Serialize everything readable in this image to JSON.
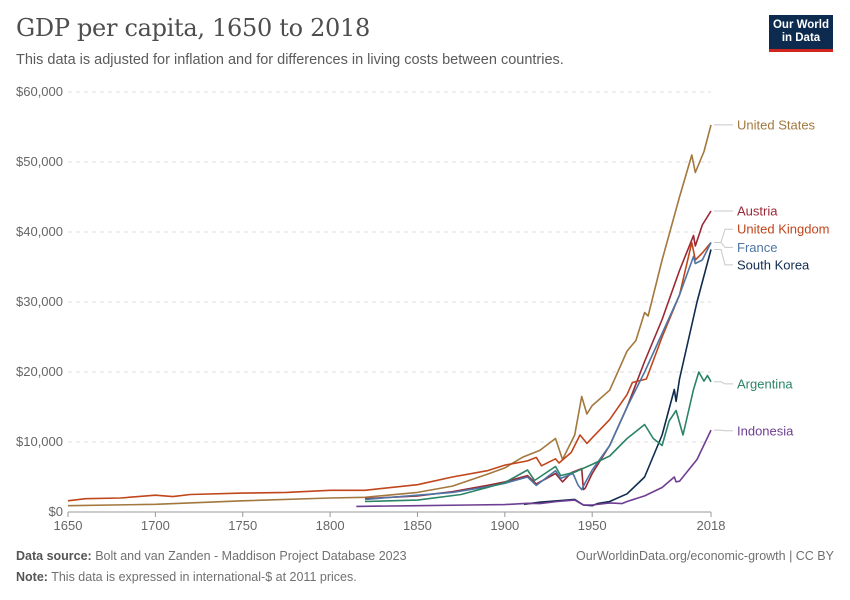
{
  "header": {
    "title": "GDP per capita, 1650 to 2018",
    "subtitle": "This data is adjusted for inflation and for differences in living costs between countries."
  },
  "logo": {
    "line1": "Our World",
    "line2": "in Data",
    "bg_color": "#0d2a4f",
    "accent_color": "#ce261e"
  },
  "footer": {
    "source_label": "Data source:",
    "source_text": " Bolt and van Zanden - Maddison Project Database 2023",
    "note_label": "Note:",
    "note_text": " This data is expressed in international-$ at 2011 prices.",
    "right_text": "OurWorldinData.org/economic-growth | CC BY"
  },
  "chart_data": {
    "type": "line",
    "title": "GDP per capita, 1650 to 2018",
    "xlim": [
      1650,
      2018
    ],
    "ylim": [
      0,
      60000
    ],
    "y_ticks": [
      0,
      10000,
      20000,
      30000,
      40000,
      50000,
      60000
    ],
    "y_tick_labels": [
      "$0",
      "$10,000",
      "$20,000",
      "$30,000",
      "$40,000",
      "$50,000",
      "$60,000"
    ],
    "x_ticks": [
      1650,
      1700,
      1750,
      1800,
      1850,
      1900,
      1950,
      2018
    ],
    "x_tick_labels": [
      "1650",
      "1700",
      "1750",
      "1800",
      "1850",
      "1900",
      "1950",
      "2018"
    ],
    "grid": "horizontal-dashed",
    "legend": "right-end-labels",
    "series": [
      {
        "name": "United States",
        "color": "#a2783e",
        "points": [
          [
            1650,
            900
          ],
          [
            1700,
            1100
          ],
          [
            1750,
            1600
          ],
          [
            1800,
            2000
          ],
          [
            1820,
            2100
          ],
          [
            1850,
            2800
          ],
          [
            1870,
            3700
          ],
          [
            1890,
            5400
          ],
          [
            1900,
            6300
          ],
          [
            1910,
            7800
          ],
          [
            1913,
            8100
          ],
          [
            1920,
            8800
          ],
          [
            1929,
            10500
          ],
          [
            1933,
            7500
          ],
          [
            1940,
            11000
          ],
          [
            1944,
            16500
          ],
          [
            1947,
            14000
          ],
          [
            1950,
            15200
          ],
          [
            1960,
            17400
          ],
          [
            1970,
            23000
          ],
          [
            1975,
            24500
          ],
          [
            1980,
            28500
          ],
          [
            1982,
            28000
          ],
          [
            1990,
            36000
          ],
          [
            2000,
            45000
          ],
          [
            2007,
            51000
          ],
          [
            2009,
            48500
          ],
          [
            2014,
            51500
          ],
          [
            2018,
            55300
          ]
        ]
      },
      {
        "name": "Austria",
        "color": "#9a2734",
        "points": [
          [
            1820,
            1900
          ],
          [
            1850,
            2300
          ],
          [
            1870,
            2900
          ],
          [
            1890,
            3800
          ],
          [
            1900,
            4300
          ],
          [
            1913,
            5200
          ],
          [
            1918,
            4000
          ],
          [
            1929,
            5500
          ],
          [
            1933,
            4300
          ],
          [
            1938,
            5600
          ],
          [
            1944,
            6200
          ],
          [
            1945,
            3200
          ],
          [
            1946,
            3400
          ],
          [
            1950,
            5500
          ],
          [
            1960,
            9500
          ],
          [
            1970,
            15000
          ],
          [
            1980,
            21500
          ],
          [
            1990,
            27500
          ],
          [
            2000,
            34500
          ],
          [
            2008,
            39500
          ],
          [
            2009,
            38000
          ],
          [
            2013,
            41000
          ],
          [
            2018,
            43000
          ]
        ]
      },
      {
        "name": "United Kingdom",
        "color": "#c0461c",
        "points": [
          [
            1650,
            1600
          ],
          [
            1660,
            1900
          ],
          [
            1680,
            2000
          ],
          [
            1700,
            2400
          ],
          [
            1710,
            2200
          ],
          [
            1720,
            2500
          ],
          [
            1750,
            2700
          ],
          [
            1775,
            2800
          ],
          [
            1800,
            3100
          ],
          [
            1820,
            3100
          ],
          [
            1850,
            3900
          ],
          [
            1870,
            5000
          ],
          [
            1890,
            5900
          ],
          [
            1900,
            6700
          ],
          [
            1913,
            7300
          ],
          [
            1918,
            7800
          ],
          [
            1921,
            6600
          ],
          [
            1929,
            7600
          ],
          [
            1931,
            7000
          ],
          [
            1938,
            8500
          ],
          [
            1943,
            11000
          ],
          [
            1947,
            9800
          ],
          [
            1950,
            10600
          ],
          [
            1960,
            13200
          ],
          [
            1970,
            16800
          ],
          [
            1973,
            18500
          ],
          [
            1981,
            19000
          ],
          [
            1990,
            25000
          ],
          [
            2000,
            31000
          ],
          [
            2007,
            38500
          ],
          [
            2009,
            36000
          ],
          [
            2013,
            37000
          ],
          [
            2018,
            38500
          ]
        ]
      },
      {
        "name": "France",
        "color": "#4e75a3",
        "points": [
          [
            1820,
            1800
          ],
          [
            1850,
            2400
          ],
          [
            1870,
            2800
          ],
          [
            1890,
            3600
          ],
          [
            1900,
            4100
          ],
          [
            1913,
            5000
          ],
          [
            1918,
            3800
          ],
          [
            1929,
            5900
          ],
          [
            1932,
            4800
          ],
          [
            1939,
            5500
          ],
          [
            1942,
            3800
          ],
          [
            1944,
            3200
          ],
          [
            1946,
            4200
          ],
          [
            1950,
            6000
          ],
          [
            1960,
            9500
          ],
          [
            1970,
            15000
          ],
          [
            1980,
            20000
          ],
          [
            1990,
            25500
          ],
          [
            2000,
            31000
          ],
          [
            2008,
            36500
          ],
          [
            2009,
            35500
          ],
          [
            2013,
            36000
          ],
          [
            2018,
            38500
          ]
        ]
      },
      {
        "name": "South Korea",
        "color": "#0f2b4e",
        "points": [
          [
            1911,
            1100
          ],
          [
            1920,
            1400
          ],
          [
            1930,
            1600
          ],
          [
            1940,
            1800
          ],
          [
            1945,
            1000
          ],
          [
            1950,
            900
          ],
          [
            1953,
            1200
          ],
          [
            1960,
            1500
          ],
          [
            1970,
            2600
          ],
          [
            1980,
            5000
          ],
          [
            1990,
            11000
          ],
          [
            1997,
            17500
          ],
          [
            1998,
            15800
          ],
          [
            2000,
            19000
          ],
          [
            2010,
            30000
          ],
          [
            2018,
            37500
          ]
        ]
      },
      {
        "name": "Argentina",
        "color": "#2b8466",
        "points": [
          [
            1820,
            1500
          ],
          [
            1850,
            1700
          ],
          [
            1875,
            2500
          ],
          [
            1890,
            3500
          ],
          [
            1900,
            4200
          ],
          [
            1913,
            6000
          ],
          [
            1917,
            4500
          ],
          [
            1929,
            6500
          ],
          [
            1932,
            5200
          ],
          [
            1940,
            5700
          ],
          [
            1950,
            6800
          ],
          [
            1960,
            8000
          ],
          [
            1970,
            10500
          ],
          [
            1975,
            11500
          ],
          [
            1980,
            12500
          ],
          [
            1985,
            10500
          ],
          [
            1990,
            9500
          ],
          [
            1994,
            13000
          ],
          [
            1998,
            14500
          ],
          [
            2002,
            11000
          ],
          [
            2008,
            17500
          ],
          [
            2011,
            20000
          ],
          [
            2014,
            18700
          ],
          [
            2016,
            19500
          ],
          [
            2018,
            18600
          ]
        ]
      },
      {
        "name": "Indonesia",
        "color": "#6d3e91",
        "points": [
          [
            1815,
            800
          ],
          [
            1850,
            900
          ],
          [
            1880,
            1000
          ],
          [
            1900,
            1050
          ],
          [
            1913,
            1250
          ],
          [
            1920,
            1200
          ],
          [
            1930,
            1500
          ],
          [
            1940,
            1700
          ],
          [
            1945,
            1000
          ],
          [
            1950,
            1000
          ],
          [
            1960,
            1300
          ],
          [
            1967,
            1200
          ],
          [
            1970,
            1500
          ],
          [
            1980,
            2300
          ],
          [
            1990,
            3500
          ],
          [
            1997,
            5000
          ],
          [
            1998,
            4300
          ],
          [
            2000,
            4400
          ],
          [
            2010,
            7500
          ],
          [
            2018,
            11700
          ]
        ]
      }
    ],
    "labels": [
      {
        "series": "United States",
        "text": "United States",
        "value": 55300,
        "label_value": 55300
      },
      {
        "series": "Austria",
        "text": "Austria",
        "value": 43000,
        "label_value": 43000
      },
      {
        "series": "United Kingdom",
        "text": "United Kingdom",
        "value": 38500,
        "label_value": 40400
      },
      {
        "series": "France",
        "text": "France",
        "value": 38500,
        "label_value": 37800
      },
      {
        "series": "South Korea",
        "text": "South Korea",
        "value": 37500,
        "label_value": 35300
      },
      {
        "series": "Argentina",
        "text": "Argentina",
        "value": 18600,
        "label_value": 18300
      },
      {
        "series": "Indonesia",
        "text": "Indonesia",
        "value": 11700,
        "label_value": 11600
      }
    ]
  }
}
